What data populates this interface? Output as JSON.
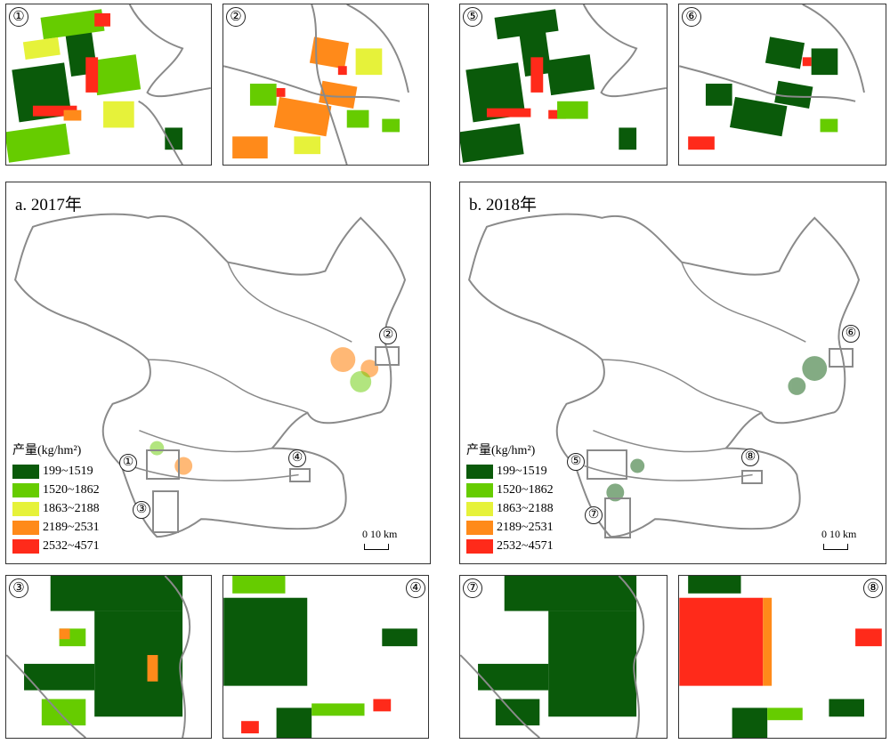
{
  "inset_labels": {
    "p1": "①",
    "p2": "②",
    "p3": "③",
    "p4": "④",
    "p5": "⑤",
    "p6": "⑥",
    "p7": "⑦",
    "p8": "⑧"
  },
  "maps": {
    "a": {
      "title": "a. 2017年",
      "badges": {
        "b1": "①",
        "b2": "②",
        "b3": "③",
        "b4": "④"
      }
    },
    "b": {
      "title": "b. 2018年",
      "badges": {
        "b5": "⑤",
        "b6": "⑥",
        "b7": "⑦",
        "b8": "⑧"
      }
    }
  },
  "legend": {
    "title": "产量(kg/hm²)",
    "classes": [
      {
        "label": "199~1519",
        "color": "#0a5a0a"
      },
      {
        "label": "1520~1862",
        "color": "#66cc00"
      },
      {
        "label": "1863~2188",
        "color": "#e6f23a"
      },
      {
        "label": "2189~2531",
        "color": "#ff8a1a"
      },
      {
        "label": "2532~4571",
        "color": "#ff2a1a"
      }
    ]
  },
  "scale": {
    "label": "0   10 km"
  },
  "colors": {
    "boundary": "#8a8a8a",
    "inset_frame": "#8a8a8a"
  }
}
